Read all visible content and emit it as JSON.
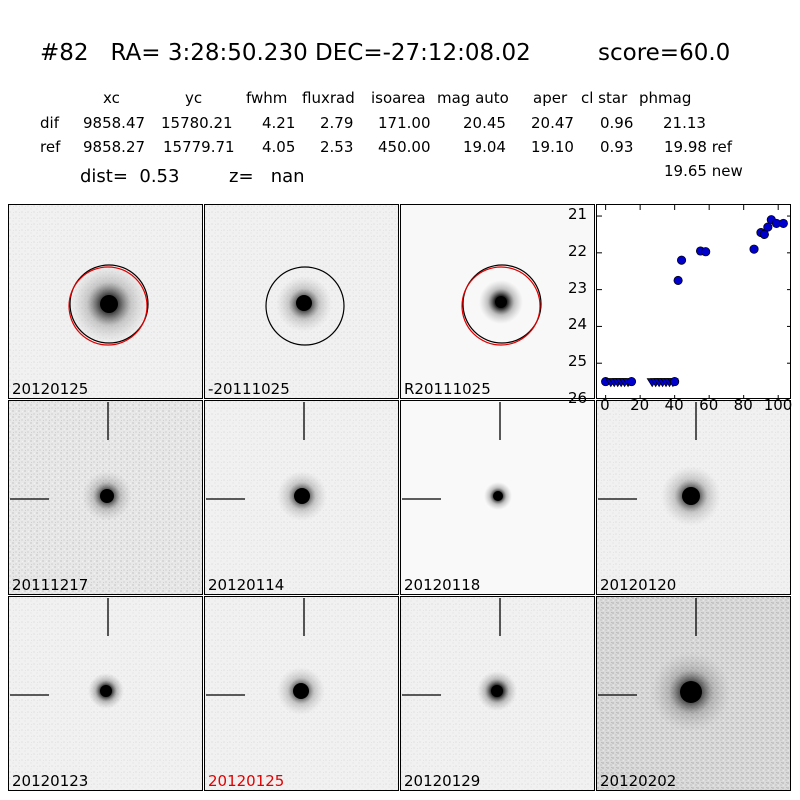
{
  "header": {
    "title": "#82   RA= 3:28:50.230 DEC=-27:12:08.02",
    "score": "score=60.0"
  },
  "table": {
    "columns": [
      "xc",
      "yc",
      "fwhm",
      "fluxrad",
      "isoarea",
      "mag auto",
      "aper",
      "cl star",
      "phmag"
    ],
    "rows": [
      {
        "label": "dif",
        "values": [
          "9858.47",
          "15780.21",
          "4.21",
          "2.79",
          "171.00",
          "20.45",
          "20.47",
          "0.96",
          "21.13"
        ]
      },
      {
        "label": "ref",
        "values": [
          "9858.27",
          "15779.71",
          "4.05",
          "2.53",
          "450.00",
          "19.04",
          "19.10",
          "0.93",
          "19.98 ref"
        ]
      }
    ],
    "extra_phmag": "19.65 new"
  },
  "stats": {
    "dist": "dist=  0.53",
    "z": "z=   nan"
  },
  "panels_top": [
    {
      "label": "20120125",
      "circle": "black+red"
    },
    {
      "label": "-20111025",
      "circle": "black"
    },
    {
      "label": "R20111025",
      "circle": "black+red"
    }
  ],
  "panels_grid": [
    {
      "label": "20111217",
      "highlight": false
    },
    {
      "label": "20120114",
      "highlight": false
    },
    {
      "label": "20120118",
      "highlight": false
    },
    {
      "label": "20120120",
      "highlight": false
    },
    {
      "label": "20120123",
      "highlight": false
    },
    {
      "label": "20120125",
      "highlight": true
    },
    {
      "label": "20120129",
      "highlight": false
    },
    {
      "label": "20120202",
      "highlight": false
    }
  ],
  "chart_data": {
    "type": "scatter",
    "title": "",
    "xlabel": "",
    "ylabel": "",
    "xlim": [
      -5,
      108
    ],
    "ylim": [
      26,
      20.7
    ],
    "y_inverted": true,
    "xticks": [
      "0",
      "20",
      "40",
      "60",
      "80",
      "100"
    ],
    "yticks": [
      "21",
      "22",
      "23",
      "24",
      "25",
      "26"
    ],
    "marker_color": "#0000cc",
    "series": [
      {
        "name": "",
        "points": [
          {
            "x": 0,
            "y": 25.5,
            "m": "circle"
          },
          {
            "x": 3,
            "y": 25.5,
            "m": "tri"
          },
          {
            "x": 5,
            "y": 25.5,
            "m": "tri"
          },
          {
            "x": 7,
            "y": 25.5,
            "m": "tri"
          },
          {
            "x": 9,
            "y": 25.5,
            "m": "tri"
          },
          {
            "x": 11,
            "y": 25.5,
            "m": "tri"
          },
          {
            "x": 13,
            "y": 25.5,
            "m": "tri"
          },
          {
            "x": 15,
            "y": 25.5,
            "m": "circle"
          },
          {
            "x": 27,
            "y": 25.5,
            "m": "tri"
          },
          {
            "x": 29,
            "y": 25.5,
            "m": "tri"
          },
          {
            "x": 31,
            "y": 25.5,
            "m": "tri"
          },
          {
            "x": 33,
            "y": 25.5,
            "m": "tri"
          },
          {
            "x": 35,
            "y": 25.5,
            "m": "tri"
          },
          {
            "x": 37,
            "y": 25.5,
            "m": "tri"
          },
          {
            "x": 39,
            "y": 25.5,
            "m": "tri"
          },
          {
            "x": 40,
            "y": 25.5,
            "m": "circle"
          },
          {
            "x": 42,
            "y": 22.75,
            "m": "circle"
          },
          {
            "x": 44,
            "y": 22.2,
            "m": "circle"
          },
          {
            "x": 55,
            "y": 21.95,
            "m": "circle"
          },
          {
            "x": 58,
            "y": 21.97,
            "m": "circle"
          },
          {
            "x": 86,
            "y": 21.9,
            "m": "circle"
          },
          {
            "x": 90,
            "y": 21.45,
            "m": "circle"
          },
          {
            "x": 92,
            "y": 21.5,
            "m": "circle"
          },
          {
            "x": 94,
            "y": 21.3,
            "m": "circle"
          },
          {
            "x": 96,
            "y": 21.1,
            "m": "circle"
          },
          {
            "x": 99,
            "y": 21.2,
            "m": "circle"
          },
          {
            "x": 103,
            "y": 21.2,
            "m": "circle"
          }
        ]
      }
    ]
  }
}
